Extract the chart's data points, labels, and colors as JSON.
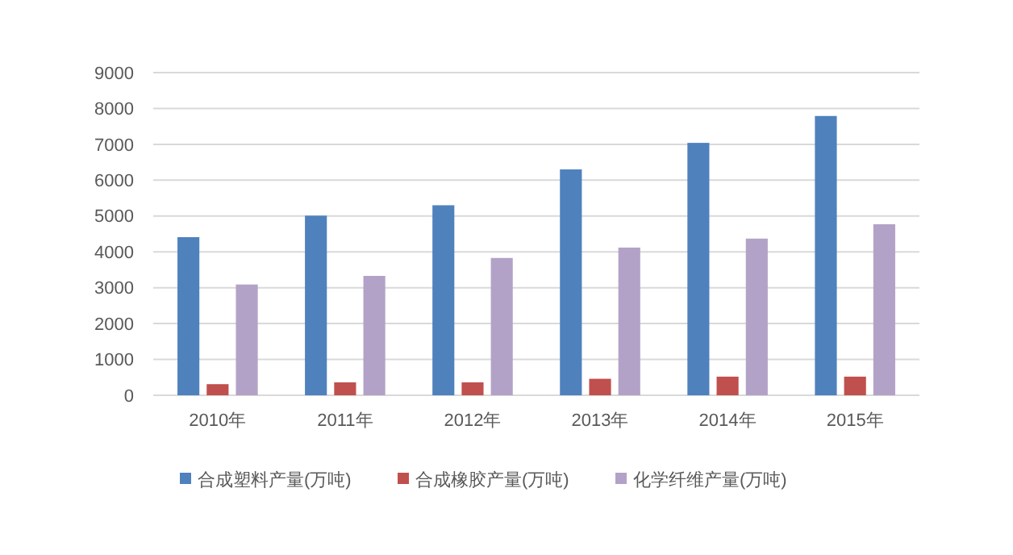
{
  "chart_data": {
    "type": "bar",
    "categories": [
      "2010年",
      "2011年",
      "2012年",
      "2013年",
      "2014年",
      "2015年"
    ],
    "series": [
      {
        "name": "合成塑料产量(万吨)",
        "color": "#4f81bd",
        "values": [
          4410,
          5010,
          5300,
          6300,
          7040,
          7790
        ]
      },
      {
        "name": "合成橡胶产量(万吨)",
        "color": "#c0504d",
        "values": [
          310,
          360,
          360,
          460,
          520,
          520
        ]
      },
      {
        "name": "化学纤维产量(万吨)",
        "color": "#b3a2c7",
        "values": [
          3090,
          3330,
          3830,
          4120,
          4370,
          4770
        ]
      }
    ],
    "ylim": [
      0,
      9000
    ],
    "yticks": [
      0,
      1000,
      2000,
      3000,
      4000,
      5000,
      6000,
      7000,
      8000,
      9000
    ],
    "grid": "y",
    "legend": "bottom"
  }
}
